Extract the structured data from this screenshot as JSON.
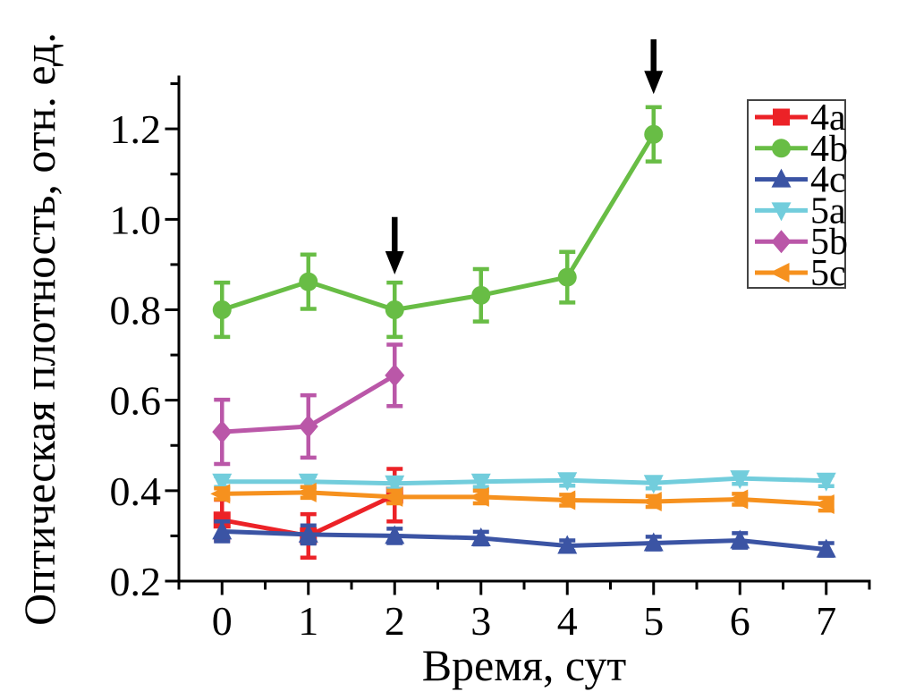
{
  "figure": {
    "background": "#ffffff",
    "text_color": "#000000"
  },
  "chart_data": {
    "type": "line",
    "title": "",
    "xlabel": "Время, сут",
    "ylabel": "Оптическая плотность, отн. ед.",
    "xlim": [
      -0.5,
      7.5
    ],
    "ylim": [
      0.2,
      1.315
    ],
    "xticks": [
      0,
      1,
      2,
      3,
      4,
      5,
      6,
      7
    ],
    "xtick_labels": [
      "0",
      "1",
      "2",
      "3",
      "4",
      "5",
      "6",
      "7"
    ],
    "xminor_step": 0.5,
    "yticks": [
      0.2,
      0.4,
      0.6,
      0.8,
      1.0,
      1.2
    ],
    "ytick_labels": [
      "0.2",
      "0.4",
      "0.6",
      "0.8",
      "1.0",
      "1.2"
    ],
    "yminor": [
      0.3,
      0.5,
      0.7,
      0.9,
      1.1,
      1.3
    ],
    "grid": false,
    "legend_position": "top-right",
    "series": [
      {
        "name": "4a",
        "color": "#EC2227",
        "marker": "square",
        "x": [
          0,
          1,
          2
        ],
        "y": [
          0.335,
          0.3,
          0.39
        ],
        "yerr": [
          0.045,
          0.048,
          0.058
        ]
      },
      {
        "name": "4b",
        "color": "#68BD45",
        "marker": "circle",
        "x": [
          0,
          1,
          2,
          3,
          4,
          5
        ],
        "y": [
          0.8,
          0.862,
          0.8,
          0.832,
          0.872,
          1.188
        ],
        "yerr": [
          0.06,
          0.06,
          0.06,
          0.058,
          0.056,
          0.06
        ]
      },
      {
        "name": "4c",
        "color": "#3B54A4",
        "marker": "triangle-up",
        "x": [
          0,
          1,
          2,
          3,
          4,
          5,
          6,
          7
        ],
        "y": [
          0.31,
          0.303,
          0.3,
          0.295,
          0.278,
          0.284,
          0.29,
          0.27
        ],
        "yerr": [
          0.022,
          0.02,
          0.016,
          0.014,
          0.012,
          0.014,
          0.016,
          0.014
        ]
      },
      {
        "name": "5a",
        "color": "#72CDDC",
        "marker": "triangle-down",
        "x": [
          0,
          1,
          2,
          3,
          4,
          5,
          6,
          7
        ],
        "y": [
          0.42,
          0.42,
          0.416,
          0.42,
          0.423,
          0.417,
          0.427,
          0.422
        ],
        "yerr": [
          0.012,
          0.012,
          0.012,
          0.012,
          0.012,
          0.012,
          0.012,
          0.012
        ]
      },
      {
        "name": "5b",
        "color": "#BA57A8",
        "marker": "diamond",
        "x": [
          0,
          1,
          2
        ],
        "y": [
          0.53,
          0.542,
          0.655
        ],
        "yerr": [
          0.071,
          0.069,
          0.068
        ]
      },
      {
        "name": "5c",
        "color": "#F6911E",
        "marker": "triangle-left",
        "x": [
          0,
          1,
          2,
          3,
          4,
          5,
          6,
          7
        ],
        "y": [
          0.393,
          0.396,
          0.386,
          0.386,
          0.379,
          0.376,
          0.381,
          0.37
        ],
        "yerr": [
          0.012,
          0.012,
          0.014,
          0.014,
          0.012,
          0.012,
          0.012,
          0.014
        ]
      }
    ],
    "annotations": {
      "arrows": [
        {
          "x": 2,
          "y_tail": 1.005,
          "y_tip": 0.878,
          "color": "#000000"
        },
        {
          "x": 5,
          "y_tail": 1.398,
          "y_tip": 1.277,
          "color": "#000000"
        }
      ]
    },
    "legend": {
      "border_color": "#444444",
      "entries": [
        "4a",
        "4b",
        "4c",
        "5a",
        "5b",
        "5c"
      ]
    }
  }
}
